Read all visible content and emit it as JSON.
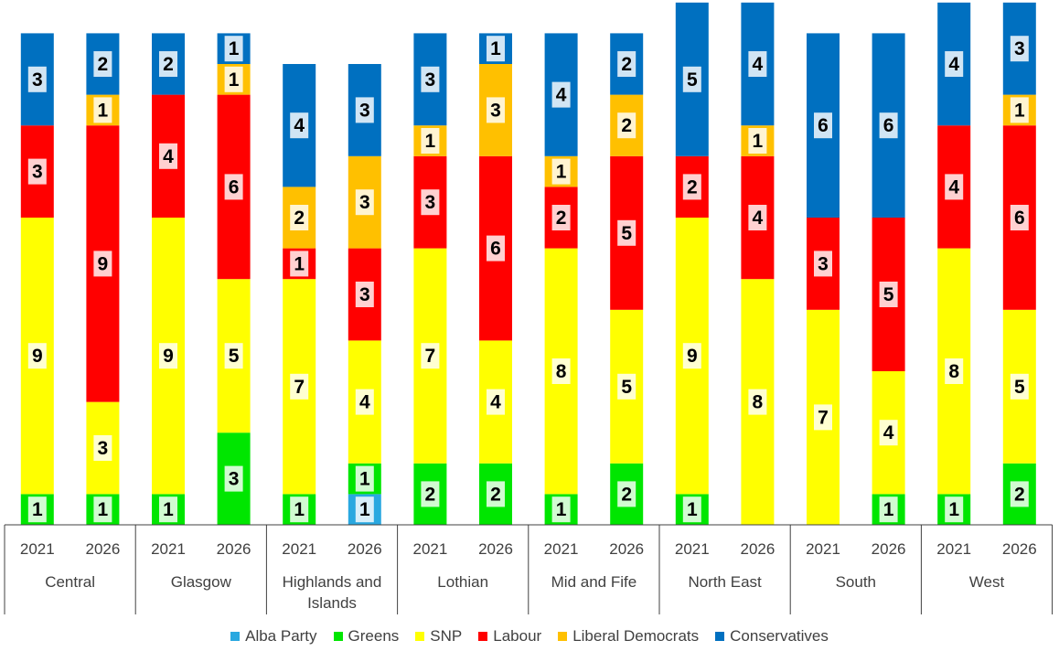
{
  "chart_data": {
    "type": "bar",
    "stacked": true,
    "legend_position": "bottom",
    "grid": false,
    "categories": [
      {
        "region": "Central",
        "year": "2021"
      },
      {
        "region": "Central",
        "year": "2026"
      },
      {
        "region": "Glasgow",
        "year": "2021"
      },
      {
        "region": "Glasgow",
        "year": "2026"
      },
      {
        "region": "Highlands and Islands",
        "year": "2021"
      },
      {
        "region": "Highlands and Islands",
        "year": "2026"
      },
      {
        "region": "Lothian",
        "year": "2021"
      },
      {
        "region": "Lothian",
        "year": "2026"
      },
      {
        "region": "Mid and Fife",
        "year": "2021"
      },
      {
        "region": "Mid and Fife",
        "year": "2026"
      },
      {
        "region": "North East",
        "year": "2021"
      },
      {
        "region": "North East",
        "year": "2026"
      },
      {
        "region": "South",
        "year": "2021"
      },
      {
        "region": "South",
        "year": "2026"
      },
      {
        "region": "West",
        "year": "2021"
      },
      {
        "region": "West",
        "year": "2026"
      }
    ],
    "regions": [
      "Central",
      "Glasgow",
      "Highlands and Islands",
      "Lothian",
      "Mid and Fife",
      "North East",
      "South",
      "West"
    ],
    "series": [
      {
        "name": "Alba Party",
        "color": "#29a8e0",
        "values": [
          0,
          0,
          0,
          0,
          0,
          1,
          0,
          0,
          0,
          0,
          0,
          0,
          0,
          0,
          0,
          0
        ]
      },
      {
        "name": "Greens",
        "color": "#00e600",
        "values": [
          1,
          1,
          1,
          3,
          1,
          1,
          2,
          2,
          1,
          2,
          1,
          0,
          0,
          1,
          1,
          2
        ]
      },
      {
        "name": "SNP",
        "color": "#ffff00",
        "values": [
          9,
          3,
          9,
          5,
          7,
          4,
          7,
          4,
          8,
          5,
          9,
          8,
          7,
          4,
          8,
          5
        ]
      },
      {
        "name": "Labour",
        "color": "#ff0000",
        "values": [
          3,
          9,
          4,
          6,
          1,
          3,
          3,
          6,
          2,
          5,
          2,
          4,
          3,
          5,
          4,
          6
        ]
      },
      {
        "name": "Liberal Democrats",
        "color": "#ffc000",
        "values": [
          0,
          1,
          0,
          1,
          2,
          3,
          1,
          3,
          1,
          2,
          0,
          1,
          0,
          0,
          0,
          1
        ]
      },
      {
        "name": "Conservatives",
        "color": "#0070c0",
        "values": [
          3,
          2,
          2,
          1,
          4,
          3,
          3,
          1,
          4,
          2,
          5,
          4,
          6,
          6,
          4,
          3
        ]
      }
    ],
    "ylim": [
      0,
      17
    ]
  }
}
